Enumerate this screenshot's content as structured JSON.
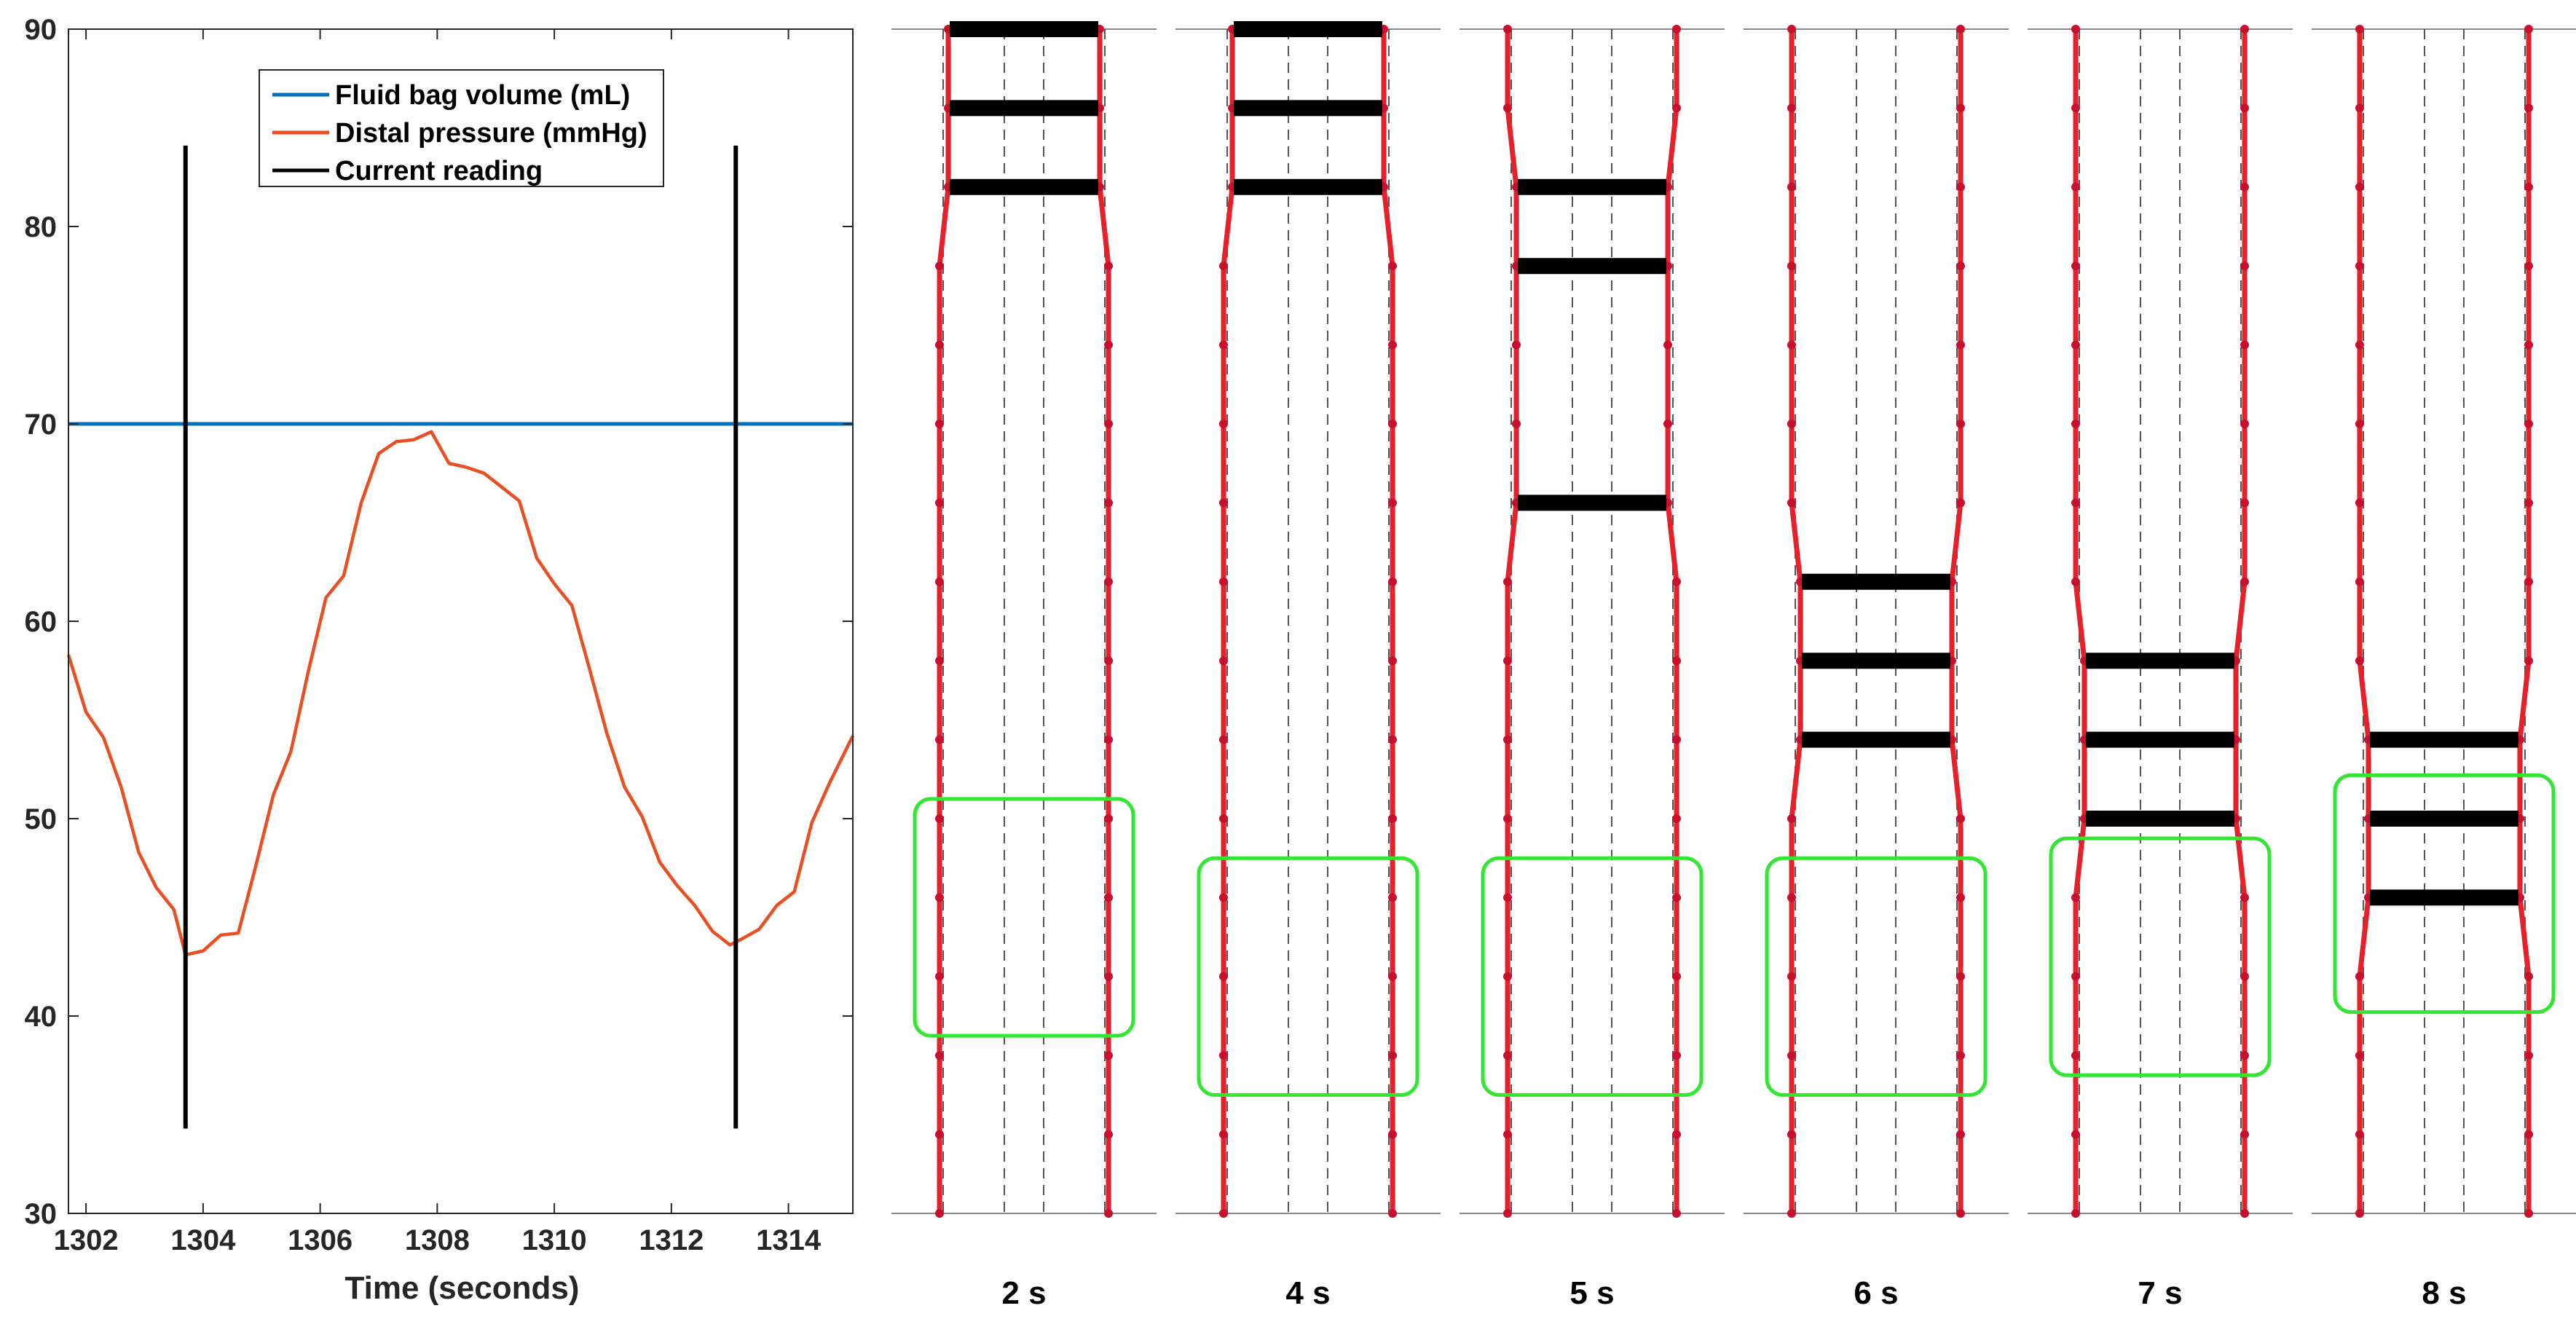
{
  "chart_data": [
    {
      "type": "line",
      "xlabel": "Time (seconds)",
      "ylabel": "",
      "xlim": [
        1301.7,
        1315.1
      ],
      "ylim": [
        30,
        90
      ],
      "xticks": [
        1302,
        1304,
        1306,
        1308,
        1310,
        1312,
        1314
      ],
      "yticks": [
        30,
        40,
        50,
        60,
        70,
        80,
        90
      ],
      "grid": false,
      "legend_position": "top-center",
      "legend": [
        "Fluid bag volume (mL)",
        "Distal pressure (mmHg)",
        "Current reading"
      ],
      "colors": {
        "volume": "#0072BD",
        "pressure": "#EA4E23",
        "reading": "#000000"
      },
      "series": [
        {
          "name": "Fluid bag volume (mL)",
          "x": [
            1301.7,
            1315.1
          ],
          "y": [
            70,
            70
          ]
        },
        {
          "name": "Distal pressure (mmHg)",
          "x": [
            1301.7,
            1302.0,
            1302.3,
            1302.6,
            1302.9,
            1303.2,
            1303.5,
            1303.7,
            1304.0,
            1304.3,
            1304.6,
            1304.9,
            1305.2,
            1305.5,
            1305.8,
            1306.1,
            1306.4,
            1306.7,
            1307.0,
            1307.3,
            1307.6,
            1307.9,
            1308.2,
            1308.5,
            1308.8,
            1309.1,
            1309.4,
            1309.7,
            1310.0,
            1310.3,
            1310.6,
            1310.9,
            1311.2,
            1311.5,
            1311.8,
            1312.1,
            1312.4,
            1312.7,
            1313.0,
            1313.2,
            1313.5,
            1313.8,
            1314.1,
            1314.4,
            1314.7,
            1315.1
          ],
          "y": [
            58.3,
            55.4,
            54.1,
            51.6,
            48.3,
            46.5,
            45.4,
            43.1,
            43.3,
            44.1,
            44.2,
            47.6,
            51.2,
            53.4,
            57.5,
            61.2,
            62.3,
            66.0,
            68.5,
            69.1,
            69.2,
            69.6,
            68.0,
            67.8,
            67.5,
            66.8,
            66.1,
            63.2,
            61.9,
            60.8,
            57.6,
            54.3,
            51.6,
            50.1,
            47.8,
            46.6,
            45.6,
            44.3,
            43.6,
            43.9,
            44.4,
            45.6,
            46.3,
            49.8,
            51.8,
            54.2
          ]
        },
        {
          "name": "Current reading",
          "x": [
            1303.7,
            1313.1
          ],
          "y": [
            34.3,
            84.1
          ]
        }
      ]
    },
    {
      "type": "diagram",
      "panels": [
        {
          "label": "2 s",
          "bars": [
            90.0,
            86.0,
            82.0
          ],
          "box_y": [
            39,
            51
          ]
        },
        {
          "label": "4 s",
          "bars": [
            90.0,
            86.0,
            82.0
          ],
          "box_y": [
            36,
            48
          ]
        },
        {
          "label": "5 s",
          "bars": [
            82.0,
            78.0,
            66.0
          ],
          "box_y": [
            36,
            48
          ]
        },
        {
          "label": "6 s",
          "bars": [
            62.0,
            58.0,
            54.0
          ],
          "box_y": [
            36,
            48
          ]
        },
        {
          "label": "7 s",
          "bars": [
            58.0,
            54.0,
            50.0
          ],
          "box_y": [
            37,
            49
          ]
        },
        {
          "label": "8 s",
          "bars": [
            54.0,
            50.0,
            46.0
          ],
          "box_y": [
            40.2,
            52.2
          ]
        }
      ],
      "colors": {
        "wall": "#E8202A",
        "bar": "#000000",
        "box": "#33E633",
        "guide": "#555555"
      }
    }
  ]
}
